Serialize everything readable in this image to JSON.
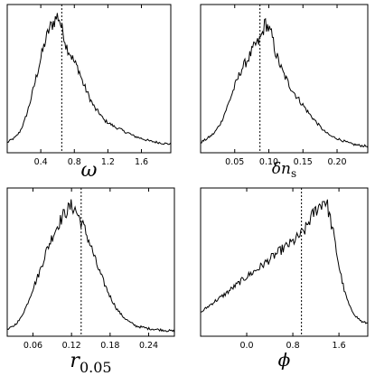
{
  "chart_data": [
    {
      "type": "line",
      "xlabel": "ω",
      "ylabel": "",
      "xlim": [
        0.0,
        1.95
      ],
      "xticks": [
        0.4,
        0.8,
        1.2,
        1.6
      ],
      "xtick_labels": [
        "0.4",
        "0.8",
        "1.2",
        "1.6"
      ],
      "yticks": [],
      "grid": false,
      "marker_line": 0.65,
      "x": [
        0.0,
        0.05,
        0.1,
        0.15,
        0.2,
        0.25,
        0.3,
        0.35,
        0.4,
        0.45,
        0.5,
        0.55,
        0.6,
        0.62,
        0.65,
        0.68,
        0.7,
        0.75,
        0.8,
        0.85,
        0.9,
        0.95,
        1.0,
        1.05,
        1.1,
        1.15,
        1.2,
        1.25,
        1.3,
        1.35,
        1.4,
        1.45,
        1.5,
        1.6,
        1.7,
        1.8,
        1.9,
        1.95
      ],
      "values": [
        0.05,
        0.07,
        0.09,
        0.13,
        0.2,
        0.3,
        0.42,
        0.55,
        0.68,
        0.8,
        0.9,
        0.95,
        1.0,
        0.98,
        0.9,
        0.85,
        0.78,
        0.72,
        0.65,
        0.6,
        0.5,
        0.43,
        0.36,
        0.3,
        0.27,
        0.22,
        0.2,
        0.18,
        0.16,
        0.15,
        0.13,
        0.12,
        0.1,
        0.08,
        0.06,
        0.05,
        0.04,
        0.04
      ]
    },
    {
      "type": "line",
      "xlabel": "δn",
      "xlabel_sub": "s",
      "ylabel": "",
      "xlim": [
        0.0,
        0.245
      ],
      "xticks": [
        0.05,
        0.1,
        0.15,
        0.2
      ],
      "xtick_labels": [
        "0.05",
        "0.10",
        "0.15",
        "0.20"
      ],
      "yticks": [],
      "grid": false,
      "marker_line": 0.087,
      "x": [
        0.0,
        0.01,
        0.02,
        0.03,
        0.04,
        0.05,
        0.06,
        0.07,
        0.08,
        0.085,
        0.09,
        0.095,
        0.1,
        0.105,
        0.11,
        0.12,
        0.13,
        0.14,
        0.15,
        0.16,
        0.17,
        0.18,
        0.19,
        0.2,
        0.21,
        0.22,
        0.23,
        0.245
      ],
      "values": [
        0.05,
        0.08,
        0.12,
        0.2,
        0.33,
        0.47,
        0.6,
        0.68,
        0.78,
        0.8,
        0.86,
        0.95,
        0.9,
        0.84,
        0.72,
        0.58,
        0.48,
        0.4,
        0.33,
        0.26,
        0.2,
        0.14,
        0.1,
        0.08,
        0.06,
        0.04,
        0.03,
        0.02
      ]
    },
    {
      "type": "line",
      "xlabel": "r",
      "xlabel_sub": "0.05",
      "ylabel": "",
      "xlim": [
        0.02,
        0.28
      ],
      "xticks": [
        0.06,
        0.12,
        0.18,
        0.24
      ],
      "xtick_labels": [
        "0.06",
        "0.12",
        "0.18",
        "0.24"
      ],
      "yticks": [],
      "grid": false,
      "marker_line": 0.135,
      "x": [
        0.02,
        0.03,
        0.04,
        0.05,
        0.06,
        0.07,
        0.08,
        0.09,
        0.1,
        0.11,
        0.12,
        0.125,
        0.13,
        0.14,
        0.15,
        0.16,
        0.17,
        0.18,
        0.19,
        0.2,
        0.21,
        0.22,
        0.23,
        0.24,
        0.26,
        0.28
      ],
      "values": [
        0.02,
        0.05,
        0.1,
        0.2,
        0.33,
        0.45,
        0.6,
        0.72,
        0.82,
        0.9,
        0.95,
        0.93,
        0.88,
        0.78,
        0.65,
        0.5,
        0.38,
        0.27,
        0.18,
        0.12,
        0.08,
        0.05,
        0.04,
        0.03,
        0.02,
        0.01
      ]
    },
    {
      "type": "line",
      "xlabel": "ϕ",
      "ylabel": "",
      "xlim": [
        -0.8,
        2.1
      ],
      "xticks": [
        0.0,
        0.8,
        1.6
      ],
      "xtick_labels": [
        "0.0",
        "0.8",
        "1.6"
      ],
      "yticks": [],
      "grid": false,
      "marker_line": 0.95,
      "x": [
        -0.8,
        -0.6,
        -0.4,
        -0.2,
        0.0,
        0.2,
        0.4,
        0.6,
        0.8,
        0.9,
        1.0,
        1.1,
        1.2,
        1.3,
        1.35,
        1.4,
        1.5,
        1.6,
        1.7,
        1.8,
        1.9,
        2.0,
        2.1
      ],
      "values": [
        0.15,
        0.22,
        0.28,
        0.35,
        0.42,
        0.48,
        0.55,
        0.62,
        0.68,
        0.72,
        0.76,
        0.85,
        0.92,
        0.97,
        1.0,
        0.95,
        0.75,
        0.5,
        0.3,
        0.18,
        0.12,
        0.08,
        0.07
      ]
    }
  ]
}
